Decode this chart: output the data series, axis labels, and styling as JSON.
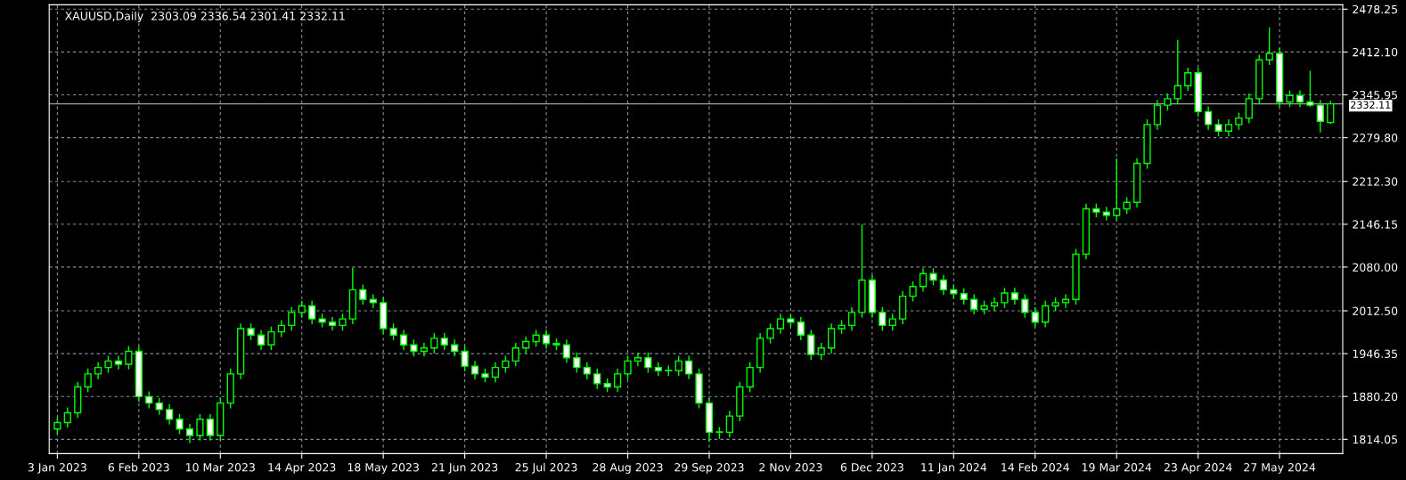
{
  "chart_data": {
    "type": "candlestick",
    "title": "XAUUSD,Daily  2303.09 2336.54 2301.41 2332.11",
    "categories": [
      "3 Jan 2023",
      null,
      null,
      null,
      null,
      null,
      null,
      null,
      "6 Feb 2023",
      null,
      null,
      null,
      null,
      null,
      null,
      null,
      "10 Mar 2023",
      null,
      null,
      null,
      null,
      null,
      null,
      null,
      "14 Apr 2023",
      null,
      null,
      null,
      null,
      null,
      null,
      null,
      "18 May 2023",
      null,
      null,
      null,
      null,
      null,
      null,
      null,
      "21 Jun 2023",
      null,
      null,
      null,
      null,
      null,
      null,
      null,
      "25 Jul 2023",
      null,
      null,
      null,
      null,
      null,
      null,
      null,
      "28 Aug 2023",
      null,
      null,
      null,
      null,
      null,
      null,
      null,
      "29 Sep 2023",
      null,
      null,
      null,
      null,
      null,
      null,
      null,
      "2 Nov 2023",
      null,
      null,
      null,
      null,
      null,
      null,
      null,
      "6 Dec 2023",
      null,
      null,
      null,
      null,
      null,
      null,
      null,
      "11 Jan 2024",
      null,
      null,
      null,
      null,
      null,
      null,
      null,
      "14 Feb 2024",
      null,
      null,
      null,
      null,
      null,
      null,
      null,
      "19 Mar 2024",
      null,
      null,
      null,
      null,
      null,
      null,
      null,
      "23 Apr 2024",
      null,
      null,
      null,
      null,
      null,
      null,
      null,
      "27 May 2024",
      null,
      null,
      null,
      null,
      null
    ],
    "ohlc": [
      [
        1830,
        1848,
        1822,
        1840
      ],
      [
        1840,
        1863,
        1832,
        1855
      ],
      [
        1855,
        1903,
        1847,
        1895
      ],
      [
        1895,
        1923,
        1887,
        1915
      ],
      [
        1915,
        1933,
        1907,
        1925
      ],
      [
        1925,
        1943,
        1917,
        1935
      ],
      [
        1935,
        1943,
        1922,
        1930
      ],
      [
        1930,
        1958,
        1922,
        1950
      ],
      [
        1950,
        1958,
        1872,
        1880
      ],
      [
        1880,
        1888,
        1862,
        1870
      ],
      [
        1870,
        1878,
        1852,
        1860
      ],
      [
        1860,
        1868,
        1837,
        1845
      ],
      [
        1845,
        1853,
        1822,
        1830
      ],
      [
        1830,
        1838,
        1808,
        1820
      ],
      [
        1820,
        1853,
        1812,
        1845
      ],
      [
        1845,
        1853,
        1812,
        1820
      ],
      [
        1820,
        1878,
        1812,
        1870
      ],
      [
        1870,
        1923,
        1862,
        1915
      ],
      [
        1915,
        1993,
        1907,
        1985
      ],
      [
        1985,
        1993,
        1967,
        1975
      ],
      [
        1975,
        1983,
        1952,
        1960
      ],
      [
        1960,
        1988,
        1952,
        1980
      ],
      [
        1980,
        1998,
        1972,
        1990
      ],
      [
        1990,
        2018,
        1982,
        2010
      ],
      [
        2010,
        2028,
        2002,
        2020
      ],
      [
        2020,
        2028,
        1992,
        2000
      ],
      [
        2000,
        2008,
        1987,
        1995
      ],
      [
        1995,
        2003,
        1982,
        1990
      ],
      [
        1990,
        2008,
        1982,
        2000
      ],
      [
        2000,
        2079,
        1992,
        2045
      ],
      [
        2045,
        2053,
        2022,
        2030
      ],
      [
        2030,
        2038,
        2017,
        2025
      ],
      [
        2025,
        2033,
        1977,
        1985
      ],
      [
        1985,
        1993,
        1967,
        1975
      ],
      [
        1975,
        1983,
        1952,
        1960
      ],
      [
        1960,
        1968,
        1942,
        1950
      ],
      [
        1950,
        1963,
        1942,
        1955
      ],
      [
        1955,
        1978,
        1947,
        1970
      ],
      [
        1970,
        1978,
        1952,
        1960
      ],
      [
        1960,
        1968,
        1942,
        1950
      ],
      [
        1950,
        1958,
        1919,
        1927
      ],
      [
        1927,
        1935,
        1907,
        1915
      ],
      [
        1915,
        1923,
        1902,
        1910
      ],
      [
        1910,
        1933,
        1902,
        1925
      ],
      [
        1925,
        1943,
        1917,
        1935
      ],
      [
        1935,
        1963,
        1927,
        1955
      ],
      [
        1955,
        1973,
        1947,
        1965
      ],
      [
        1965,
        1983,
        1957,
        1975
      ],
      [
        1975,
        1983,
        1954,
        1962
      ],
      [
        1962,
        1970,
        1952,
        1960
      ],
      [
        1960,
        1968,
        1932,
        1940
      ],
      [
        1940,
        1948,
        1917,
        1925
      ],
      [
        1925,
        1933,
        1907,
        1915
      ],
      [
        1915,
        1923,
        1892,
        1900
      ],
      [
        1900,
        1908,
        1887,
        1895
      ],
      [
        1895,
        1923,
        1887,
        1915
      ],
      [
        1915,
        1943,
        1907,
        1935
      ],
      [
        1935,
        1948,
        1927,
        1940
      ],
      [
        1940,
        1948,
        1917,
        1925
      ],
      [
        1925,
        1933,
        1912,
        1920
      ],
      [
        1920,
        1928,
        1912,
        1920
      ],
      [
        1920,
        1943,
        1912,
        1935
      ],
      [
        1935,
        1943,
        1907,
        1915
      ],
      [
        1915,
        1923,
        1862,
        1870
      ],
      [
        1870,
        1878,
        1810,
        1825
      ],
      [
        1825,
        1833,
        1815,
        1825
      ],
      [
        1825,
        1858,
        1817,
        1850
      ],
      [
        1850,
        1903,
        1842,
        1895
      ],
      [
        1895,
        1933,
        1887,
        1925
      ],
      [
        1925,
        1978,
        1917,
        1970
      ],
      [
        1970,
        1993,
        1962,
        1985
      ],
      [
        1985,
        2008,
        1977,
        2000
      ],
      [
        2000,
        2008,
        1987,
        1995
      ],
      [
        1995,
        2003,
        1967,
        1975
      ],
      [
        1975,
        1983,
        1937,
        1945
      ],
      [
        1945,
        1963,
        1937,
        1955
      ],
      [
        1955,
        1993,
        1947,
        1985
      ],
      [
        1985,
        1998,
        1977,
        1990
      ],
      [
        1990,
        2018,
        1982,
        2010
      ],
      [
        2010,
        2146,
        2002,
        2060
      ],
      [
        2060,
        2068,
        2002,
        2010
      ],
      [
        2010,
        2018,
        1982,
        1990
      ],
      [
        1990,
        2008,
        1982,
        2000
      ],
      [
        2000,
        2043,
        1992,
        2035
      ],
      [
        2035,
        2058,
        2027,
        2050
      ],
      [
        2050,
        2078,
        2042,
        2070
      ],
      [
        2070,
        2078,
        2052,
        2060
      ],
      [
        2060,
        2068,
        2037,
        2045
      ],
      [
        2045,
        2053,
        2031,
        2039
      ],
      [
        2039,
        2047,
        2022,
        2030
      ],
      [
        2030,
        2038,
        2007,
        2015
      ],
      [
        2015,
        2028,
        2007,
        2020
      ],
      [
        2020,
        2033,
        2012,
        2025
      ],
      [
        2025,
        2048,
        2017,
        2040
      ],
      [
        2040,
        2048,
        2022,
        2030
      ],
      [
        2030,
        2038,
        2002,
        2010
      ],
      [
        2010,
        2018,
        1987,
        1995
      ],
      [
        1995,
        2028,
        1987,
        2020
      ],
      [
        2020,
        2033,
        2012,
        2025
      ],
      [
        2025,
        2038,
        2017,
        2030
      ],
      [
        2030,
        2108,
        2022,
        2100
      ],
      [
        2100,
        2178,
        2092,
        2170
      ],
      [
        2170,
        2178,
        2157,
        2165
      ],
      [
        2165,
        2173,
        2152,
        2160
      ],
      [
        2160,
        2248,
        2152,
        2170
      ],
      [
        2170,
        2188,
        2162,
        2180
      ],
      [
        2180,
        2248,
        2172,
        2240
      ],
      [
        2240,
        2308,
        2232,
        2300
      ],
      [
        2300,
        2338,
        2292,
        2330
      ],
      [
        2330,
        2348,
        2322,
        2340
      ],
      [
        2340,
        2431,
        2332,
        2360
      ],
      [
        2360,
        2388,
        2352,
        2380
      ],
      [
        2380,
        2388,
        2312,
        2320
      ],
      [
        2320,
        2328,
        2292,
        2300
      ],
      [
        2300,
        2308,
        2282,
        2290
      ],
      [
        2290,
        2308,
        2282,
        2300
      ],
      [
        2300,
        2318,
        2292,
        2310
      ],
      [
        2310,
        2348,
        2302,
        2340
      ],
      [
        2340,
        2408,
        2332,
        2400
      ],
      [
        2400,
        2450,
        2392,
        2410
      ],
      [
        2410,
        2418,
        2327,
        2335
      ],
      [
        2335,
        2353,
        2327,
        2345
      ],
      [
        2345,
        2353,
        2327,
        2335
      ],
      [
        2335,
        2383,
        2327,
        2330
      ],
      [
        2330,
        2338,
        2288,
        2305
      ],
      [
        2303.09,
        2336.54,
        2301.41,
        2332.11
      ]
    ],
    "color": "#00ff00",
    "colors": [
      "#000000",
      "#000000",
      "#000000",
      "#000000",
      "#000000",
      "#000000",
      "#ffffff",
      "#000000",
      "#ffffff",
      "#ffffff",
      "#ffffff",
      "#ffffff",
      "#ffffff",
      "#ffffff",
      "#000000",
      "#ffffff",
      "#000000",
      "#000000",
      "#000000",
      "#ffffff",
      "#ffffff",
      "#000000",
      "#000000",
      "#000000",
      "#000000",
      "#ffffff",
      "#ffffff",
      "#ffffff",
      "#000000",
      "#000000",
      "#ffffff",
      "#ffffff",
      "#ffffff",
      "#ffffff",
      "#ffffff",
      "#ffffff",
      "#000000",
      "#000000",
      "#ffffff",
      "#ffffff",
      "#ffffff",
      "#ffffff",
      "#ffffff",
      "#000000",
      "#000000",
      "#000000",
      "#000000",
      "#000000",
      "#ffffff",
      "#ffffff",
      "#ffffff",
      "#ffffff",
      "#ffffff",
      "#ffffff",
      "#ffffff",
      "#000000",
      "#000000",
      "#000000",
      "#ffffff",
      "#ffffff",
      "#000000",
      "#000000",
      "#ffffff",
      "#ffffff",
      "#ffffff",
      "#000000",
      "#000000",
      "#000000",
      "#000000",
      "#000000",
      "#000000",
      "#000000",
      "#ffffff",
      "#ffffff",
      "#ffffff",
      "#000000",
      "#000000",
      "#000000",
      "#000000",
      "#000000",
      "#ffffff",
      "#ffffff",
      "#000000",
      "#000000",
      "#000000",
      "#000000",
      "#ffffff",
      "#ffffff",
      "#ffffff",
      "#ffffff",
      "#ffffff",
      "#000000",
      "#000000",
      "#000000",
      "#ffffff",
      "#ffffff",
      "#ffffff",
      "#000000",
      "#000000",
      "#000000",
      "#000000",
      "#000000",
      "#ffffff",
      "#ffffff",
      "#000000",
      "#000000",
      "#000000",
      "#000000",
      "#000000",
      "#000000",
      "#000000",
      "#000000",
      "#ffffff",
      "#ffffff",
      "#ffffff",
      "#000000",
      "#000000",
      "#000000",
      "#000000",
      "#000000",
      "#ffffff",
      "#000000",
      "#ffffff",
      "#ffffff",
      "#ffffff",
      "#000000"
    ],
    "ylim": [
      1792,
      2485
    ],
    "yticks": [
      1814.05,
      {
        "value": 1880.2,
        "label": "1880.20"
      },
      1946.35,
      {
        "value": 2012.5,
        "label": "2012.50"
      },
      {
        "value": 2080,
        "label": "2080.00"
      },
      2146.15,
      {
        "value": 2212.3,
        "label": "2212.30"
      },
      {
        "value": 2279.8,
        "label": "2279.80"
      },
      2345.95,
      {
        "value": 2412.1,
        "label": "2412.10"
      },
      2478.25
    ],
    "ref_lines": [
      {
        "axis": "y",
        "value": 2332.11,
        "label": "2332.11",
        "color": "#a0a0a0"
      }
    ],
    "grid": true
  }
}
